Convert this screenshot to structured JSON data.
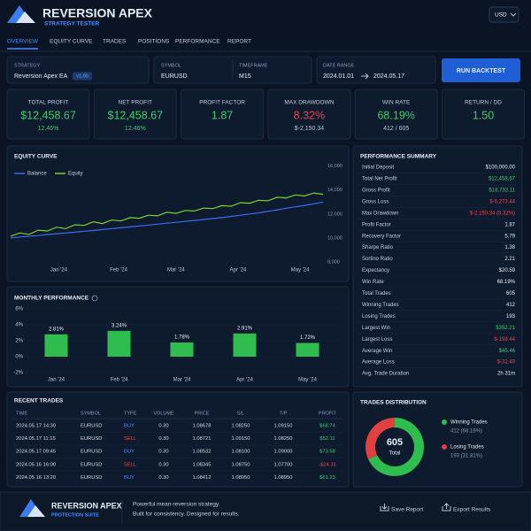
{
  "header": {
    "title": "REVERSION APEX",
    "subtitle": "STRATEGY TESTER",
    "currency": "USD"
  },
  "tabs": [
    "OVERVIEW",
    "EQUITY CURVE",
    "TRADES",
    "POSITIONS",
    "PERFORMANCE",
    "REPORT"
  ],
  "active_tab": 0,
  "config": {
    "strategy_label": "STRATEGY",
    "strategy": "Reversion Apex EA",
    "version": "v1.00",
    "symbol_label": "SYMBOL",
    "symbol": "EURUSD",
    "timeframe_label": "TIMEFRAME",
    "timeframe": "M15",
    "date_label": "DATE RANGE",
    "date_from": "2024.01.01",
    "date_to": "2024.05.17",
    "run_button": "RUN BACKTEST"
  },
  "kpis": [
    {
      "label": "TOTAL PROFIT",
      "value": "$12,458.67",
      "sub": "12.46%",
      "color": "#3ccf6a",
      "sub_color": "#3ccf6a"
    },
    {
      "label": "NET PROFIT",
      "value": "$12,458.67",
      "sub": "12.46%",
      "color": "#3ccf6a",
      "sub_color": "#3ccf6a"
    },
    {
      "label": "PROFIT FACTOR",
      "value": "1.87",
      "color": "#3ccf6a"
    },
    {
      "label": "MAX DRAWDOWN",
      "value": "8.32%",
      "sub": "$-2,150.34",
      "color": "#f04444",
      "sub_color": "#b9c4d6"
    },
    {
      "label": "WIN RATE",
      "value": "68.19%",
      "sub": "412 / 605",
      "color": "#3ccf6a",
      "sub_color": "#b9c4d6"
    },
    {
      "label": "RETURN / DD",
      "value": "1.50",
      "color": "#3ccf6a"
    }
  ],
  "chart_data": [
    {
      "type": "line",
      "title": "EQUITY CURVE",
      "x": [
        0,
        4,
        8,
        12,
        16,
        20,
        24,
        28,
        32,
        36,
        40,
        44,
        48,
        52,
        56,
        60,
        64,
        68,
        72,
        76,
        80,
        84,
        88,
        92,
        96,
        100,
        104,
        108,
        112,
        116,
        120,
        124,
        128,
        132,
        136
      ],
      "series": [
        {
          "name": "Balance",
          "color": "#3b6cf0",
          "values": [
            10000,
            10080,
            10150,
            10200,
            10290,
            10350,
            10420,
            10480,
            10560,
            10620,
            10700,
            10780,
            10850,
            10920,
            11000,
            11080,
            11150,
            11230,
            11300,
            11380,
            11460,
            11540,
            11620,
            11700,
            11800,
            11900,
            12000,
            12100,
            12220,
            12350,
            12480,
            12600,
            12720,
            12850,
            13000
          ]
        },
        {
          "name": "Equity",
          "color": "#7bd12f",
          "values": [
            10150,
            10420,
            10300,
            10650,
            10580,
            10900,
            10780,
            11100,
            11050,
            11350,
            11200,
            11500,
            11420,
            11700,
            11650,
            11900,
            11850,
            12150,
            12050,
            12300,
            12250,
            12500,
            12450,
            12700,
            12650,
            12950,
            12900,
            13150,
            13100,
            13400,
            13350,
            13600,
            13500,
            13750,
            13650
          ]
        }
      ],
      "xlim": [
        0,
        136
      ],
      "xticks": [
        {
          "value": 21,
          "label": "Jan '24"
        },
        {
          "value": 47,
          "label": "Feb '24"
        },
        {
          "value": 72,
          "label": "Mar '24"
        },
        {
          "value": 99,
          "label": "Apr '24"
        },
        {
          "value": 126,
          "label": "May '24"
        }
      ],
      "ylim": [
        7700,
        16200
      ],
      "yticks": [
        {
          "value": 16000,
          "label": "16,000"
        },
        {
          "value": 14000,
          "label": "14,000"
        },
        {
          "value": 12000,
          "label": "12,000"
        },
        {
          "value": 10000,
          "label": "10,000"
        },
        {
          "value": 8000,
          "label": "8,000"
        }
      ],
      "grid": false
    },
    {
      "type": "bar",
      "title": "MONTHLY PERFORMANCE",
      "categories": [
        "Jan '24",
        "Feb '24",
        "Mar '24",
        "Apr '24",
        "May '24"
      ],
      "values": [
        2.81,
        3.24,
        1.78,
        2.91,
        1.72
      ],
      "value_labels": [
        "2.81%",
        "3.24%",
        "1.78%",
        "2.91%",
        "1.72%"
      ],
      "color": "#2ebd4e",
      "ylim": [
        -2,
        6
      ],
      "yticks": [
        {
          "value": 6,
          "label": "6%"
        },
        {
          "value": 4,
          "label": "4%"
        },
        {
          "value": 2,
          "label": "2%"
        },
        {
          "value": 0,
          "label": "0%"
        },
        {
          "value": -2,
          "label": "-2%"
        }
      ],
      "grid": true
    },
    {
      "type": "donut",
      "title": "TRADES DISTRIBUTION",
      "categories": [
        "Winning Trades",
        "Losing Trades"
      ],
      "values": [
        412,
        193
      ],
      "value_labels": [
        "412 (68.19%)",
        "193 (31.81%)"
      ],
      "colors": [
        "#2ebd4e",
        "#e04040"
      ],
      "total": 605,
      "total_label": "Total"
    }
  ],
  "summary": {
    "title": "PERFORMANCE SUMMARY",
    "rows": [
      {
        "label": "Initial Deposit",
        "value": "$100,000.00"
      },
      {
        "label": "Total Net Profit",
        "value": "$12,458.67",
        "color": "#3ccf6a"
      },
      {
        "label": "Gross Profit",
        "value": "$18,732.11",
        "color": "#3ccf6a"
      },
      {
        "label": "Gross Loss",
        "value": "$-6,273.44",
        "color": "#f04444"
      },
      {
        "label": "Max Drawdown",
        "value": "$-2,150.34 (8.32%)",
        "color": "#f04444"
      },
      {
        "label": "Profit Factor",
        "value": "1.87"
      },
      {
        "label": "Recovery Factor",
        "value": "5.79"
      },
      {
        "label": "Sharpe Ratio",
        "value": "1.38"
      },
      {
        "label": "Sortino Ratio",
        "value": "2.21"
      },
      {
        "label": "Expectancy",
        "value": "$20.59"
      },
      {
        "label": "Win Rate",
        "value": "68.19%"
      },
      {
        "label": "Total Trades",
        "value": "605"
      },
      {
        "label": "Winning Trades",
        "value": "412"
      },
      {
        "label": "Losing Trades",
        "value": "193"
      },
      {
        "label": "Largest Win",
        "value": "$352.21",
        "color": "#3ccf6a"
      },
      {
        "label": "Largest Loss",
        "value": "$-198.44",
        "color": "#f04444"
      },
      {
        "label": "Average Win",
        "value": "$45.46",
        "color": "#3ccf6a"
      },
      {
        "label": "Average Loss",
        "value": "$-32.49",
        "color": "#f04444"
      },
      {
        "label": "Avg. Trade Duration",
        "value": "2h 31m"
      }
    ]
  },
  "trades": {
    "title": "RECENT TRADES",
    "columns": [
      "TIME",
      "SYMBOL",
      "TYPE",
      "VOLUME",
      "PRICE",
      "S/L",
      "T/P",
      "PROFIT"
    ],
    "rows": [
      {
        "cells": [
          "2024.05.17 14:30",
          "EURUSD",
          "BUY",
          "0.30",
          "1.08678",
          "1.08250",
          "1.09150",
          "$68.74"
        ],
        "type_color": "#4c8dff",
        "profit_color": "#3ccf6a"
      },
      {
        "cells": [
          "2024.05.17 11:15",
          "EURUSD",
          "SELL",
          "0.30",
          "1.08721",
          "1.09150",
          "1.08250",
          "$52.11"
        ],
        "type_color": "#f04444",
        "profit_color": "#3ccf6a"
      },
      {
        "cells": [
          "2024.05.17 09:45",
          "EURUSD",
          "BUY",
          "0.30",
          "1.08532",
          "1.08100",
          "1.09000",
          "$73.58"
        ],
        "type_color": "#4c8dff",
        "profit_color": "#3ccf6a"
      },
      {
        "cells": [
          "2024.05.16 16:00",
          "EURUSD",
          "SELL",
          "0.30",
          "1.08345",
          "1.08750",
          "1.07700",
          "-$24.31"
        ],
        "type_color": "#f04444",
        "profit_color": "#f04444"
      },
      {
        "cells": [
          "2024.05.16 13:20",
          "EURUSD",
          "BUY",
          "0.30",
          "1.08412",
          "1.08050",
          "1.08950",
          "$61.23"
        ],
        "type_color": "#4c8dff",
        "profit_color": "#3ccf6a"
      }
    ]
  },
  "footer": {
    "title": "REVERSION APEX",
    "subtitle": "PROTECTION SUITE",
    "tagline1": "Powerful mean-reversion strategy.",
    "tagline2": "Built for consistency. Designed for results.",
    "save": "Save Report",
    "export": "Export Results"
  }
}
